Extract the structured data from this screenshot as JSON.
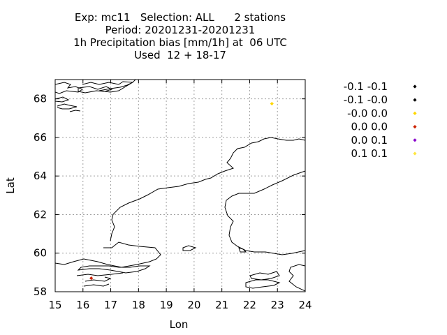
{
  "title_lines": [
    "Exp: mc11   Selection: ALL      2 stations",
    "Period: 20201231-20201231",
    "1h Precipitation bias [mm/1h] at  06 UTC",
    "Used  12 + 18-17"
  ],
  "chart_data": {
    "type": "scatter",
    "xlabel": "Lon",
    "ylabel": "Lat",
    "xlim": [
      15,
      24
    ],
    "ylim": [
      58,
      69
    ],
    "xticks": [
      "15",
      "16",
      "17",
      "18",
      "19",
      "20",
      "21",
      "22",
      "23",
      "24"
    ],
    "yticks": [
      "58",
      "60",
      "62",
      "64",
      "66",
      "68"
    ],
    "grid": true,
    "legend_position": "right",
    "legend": [
      {
        "label": "-0.1 -0.1",
        "color": "#000000"
      },
      {
        "label": "-0.1 -0.0",
        "color": "#000000"
      },
      {
        "label": "-0.0 0.0",
        "color": "#ffd700"
      },
      {
        "label": "0.0 0.0",
        "color": "#cc2200"
      },
      {
        "label": "0.0 0.1",
        "color": "#8800cc"
      },
      {
        "label": "0.1 0.1",
        "color": "#ffe640"
      }
    ],
    "points": [
      {
        "lon": 22.8,
        "lat": 67.75,
        "color": "#ffd700"
      },
      {
        "lon": 16.3,
        "lat": 58.7,
        "color": "#cc2200"
      }
    ]
  }
}
